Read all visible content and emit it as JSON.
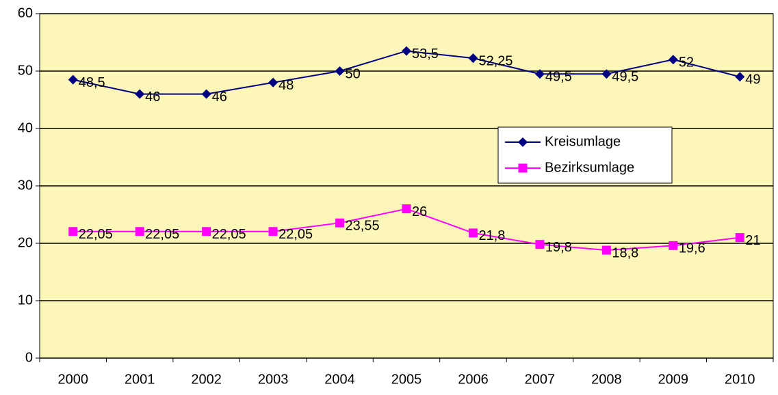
{
  "chart_data": {
    "type": "line",
    "categories": [
      "2000",
      "2001",
      "2002",
      "2003",
      "2004",
      "2005",
      "2006",
      "2007",
      "2008",
      "2009",
      "2010"
    ],
    "series": [
      {
        "name": "Kreisumlage",
        "color": "#000080",
        "marker": "diamond",
        "values": [
          48.5,
          46,
          46,
          48,
          50,
          53.5,
          52.25,
          49.5,
          49.5,
          52,
          49
        ],
        "value_labels": [
          "48,5",
          "46",
          "46",
          "48",
          "50",
          "53,5",
          "52,25",
          "49,5",
          "49,5",
          "52",
          "49"
        ]
      },
      {
        "name": "Bezirksumlage",
        "color": "#ff00ff",
        "marker": "square",
        "values": [
          22.05,
          22.05,
          22.05,
          22.05,
          23.55,
          26,
          21.8,
          19.8,
          18.8,
          19.6,
          21
        ],
        "value_labels": [
          "22,05",
          "22,05",
          "22,05",
          "22,05",
          "23,55",
          "26",
          "21,8",
          "19,8",
          "18,8",
          "19,6",
          "21"
        ]
      }
    ],
    "ylim": [
      0,
      60
    ],
    "yticks": [
      0,
      10,
      20,
      30,
      40,
      50,
      60
    ],
    "grid": true,
    "legend": "right",
    "plot_background": "#fdf6b9"
  }
}
